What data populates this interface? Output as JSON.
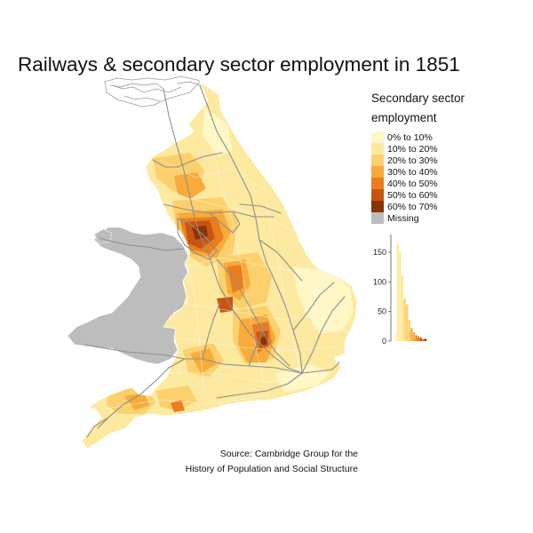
{
  "title": "Railways & secondary sector employment in 1851",
  "legend": {
    "title_line1": "Secondary sector",
    "title_line2": "employment",
    "items": [
      {
        "label": "0% to 10%",
        "color": "#fff7c6"
      },
      {
        "label": "10% to 20%",
        "color": "#fde9a0"
      },
      {
        "label": "20% to 30%",
        "color": "#fcd06c"
      },
      {
        "label": "30% to 40%",
        "color": "#f8aa3a"
      },
      {
        "label": "40% to 50%",
        "color": "#ea7e1e"
      },
      {
        "label": "50% to 60%",
        "color": "#c75410"
      },
      {
        "label": "60% to 70%",
        "color": "#8a3406"
      },
      {
        "label": "Missing",
        "color": "#bdbdbd"
      }
    ]
  },
  "histogram": {
    "y_ticks": [
      0,
      50,
      100,
      150
    ],
    "y_max": 180,
    "bars": [
      {
        "value": 12,
        "color": "#fff7c6"
      },
      {
        "value": 165,
        "color": "#fde9a0"
      },
      {
        "value": 150,
        "color": "#fde9a0"
      },
      {
        "value": 110,
        "color": "#fde9a0"
      },
      {
        "value": 72,
        "color": "#fcd06c"
      },
      {
        "value": 62,
        "color": "#fcd06c"
      },
      {
        "value": 36,
        "color": "#fcd06c"
      },
      {
        "value": 22,
        "color": "#f8aa3a"
      },
      {
        "value": 15,
        "color": "#f8aa3a"
      },
      {
        "value": 10,
        "color": "#ea7e1e"
      },
      {
        "value": 8,
        "color": "#ea7e1e"
      },
      {
        "value": 6,
        "color": "#c75410"
      },
      {
        "value": 3,
        "color": "#c75410"
      },
      {
        "value": 4,
        "color": "#8a3406"
      }
    ]
  },
  "source": {
    "line1": "Source: Cambridge Group for the",
    "line2": "History of Population and Social Structure"
  },
  "colors": {
    "railway": "#8e8e8e",
    "boundary": "#ffffff",
    "missing": "#bdbdbd"
  }
}
